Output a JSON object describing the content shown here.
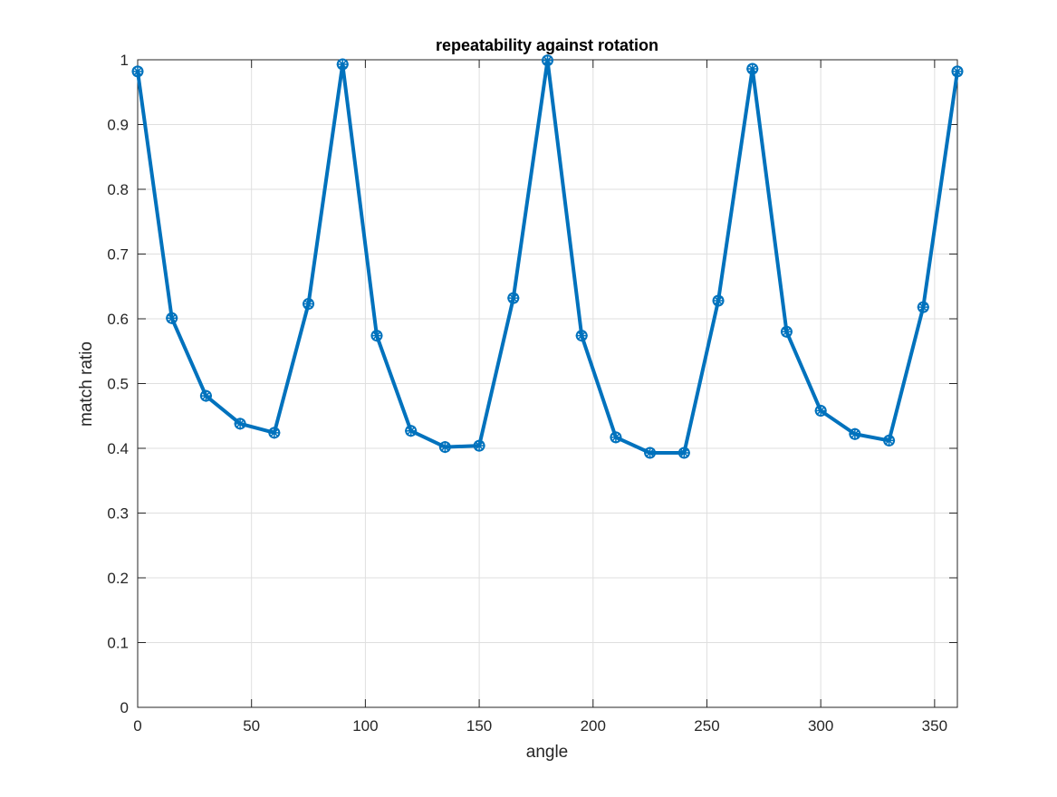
{
  "chart_data": {
    "type": "line",
    "title": "repeatability against rotation",
    "xlabel": "angle",
    "ylabel": "match ratio",
    "xlim": [
      0,
      360
    ],
    "ylim": [
      0,
      1
    ],
    "xticks": [
      0,
      50,
      100,
      150,
      200,
      250,
      300,
      350
    ],
    "yticks": [
      0,
      0.1,
      0.2,
      0.3,
      0.4,
      0.5,
      0.6,
      0.7,
      0.8,
      0.9,
      1
    ],
    "grid": true,
    "series": [
      {
        "name": "",
        "color": "#0072BD",
        "marker": "asterisk-circle",
        "x": [
          0,
          15,
          30,
          45,
          60,
          75,
          90,
          105,
          120,
          135,
          150,
          165,
          180,
          195,
          210,
          225,
          240,
          255,
          270,
          285,
          300,
          315,
          330,
          345,
          360
        ],
        "y": [
          0.982,
          0.601,
          0.481,
          0.438,
          0.424,
          0.623,
          0.993,
          0.574,
          0.427,
          0.402,
          0.404,
          0.632,
          0.999,
          0.574,
          0.417,
          0.393,
          0.393,
          0.628,
          0.986,
          0.58,
          0.458,
          0.422,
          0.412,
          0.618,
          0.982
        ]
      }
    ]
  }
}
